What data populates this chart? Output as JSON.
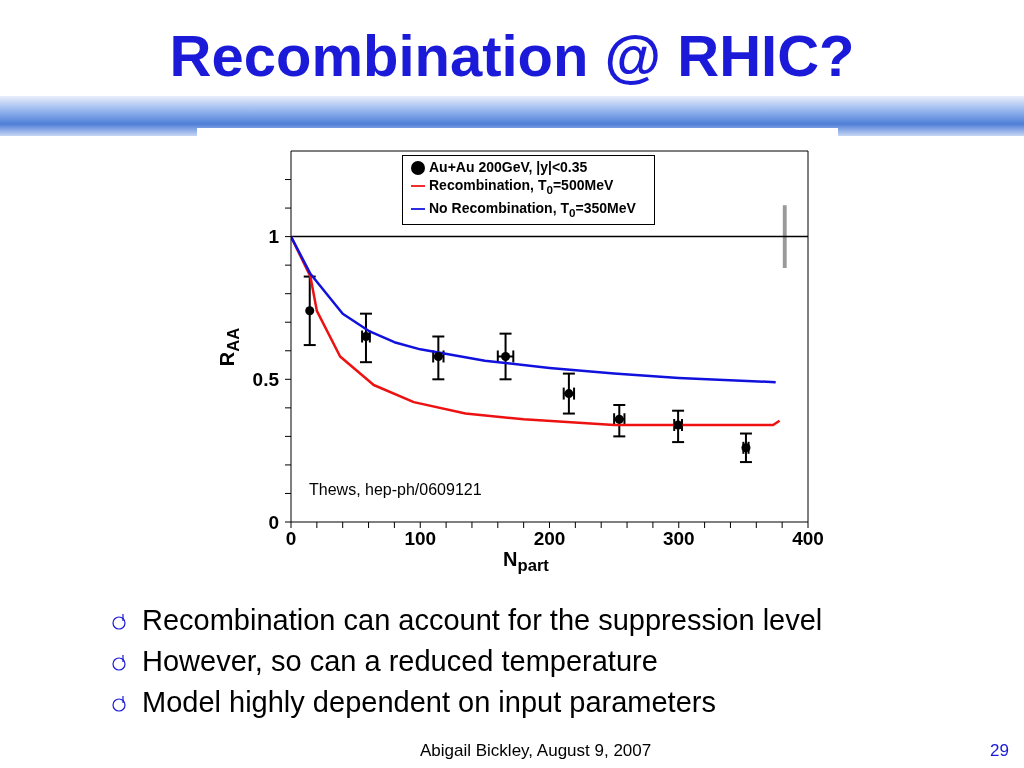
{
  "chart_data": {
    "type": "scatter",
    "title": "Recombination @ RHIC?",
    "xlabel": "N$_{part}$",
    "ylabel": "R$_{AA}$",
    "xlim": [
      0,
      400
    ],
    "xticks": [
      0,
      {
        "value": 20,
        "label": null
      },
      {
        "value": 40,
        "label": null
      },
      {
        "value": 60,
        "label": null
      },
      {
        "value": 80,
        "label": null
      },
      100,
      {
        "value": 120,
        "label": null
      },
      {
        "value": 140,
        "label": null
      },
      {
        "value": 160,
        "label": null
      },
      {
        "value": 180,
        "label": null
      },
      200,
      {
        "value": 220,
        "label": null
      },
      {
        "value": 240,
        "label": null
      },
      {
        "value": 260,
        "label": null
      },
      {
        "value": 280,
        "label": null
      },
      300,
      {
        "value": 320,
        "label": null
      },
      {
        "value": 340,
        "label": null
      },
      {
        "value": 360,
        "label": null
      },
      {
        "value": 380,
        "label": null
      },
      400
    ],
    "ylim": [
      0,
      1.3
    ],
    "yticks": [
      0,
      {
        "value": 0.1,
        "label": null
      },
      {
        "value": 0.2,
        "label": null
      },
      {
        "value": 0.3,
        "label": null
      },
      {
        "value": 0.4,
        "label": null
      },
      0.5,
      {
        "value": 0.6,
        "label": null
      },
      {
        "value": 0.7,
        "label": null
      },
      {
        "value": 0.8,
        "label": null
      },
      {
        "value": 0.9,
        "label": null
      },
      1,
      {
        "value": 1.1,
        "label": null
      },
      {
        "value": 1.2,
        "label": null
      }
    ],
    "grid": false,
    "legend": "top",
    "marker": "circle",
    "line_style": "solid",
    "series": [
      {
        "name": "Au+Au 200GeV, |y|<0.35",
        "color": "#000000",
        "x": [
          14.5,
          58,
          114,
          166,
          215,
          254,
          299.5,
          352
        ],
        "values": [
          0.74,
          0.65,
          0.58,
          0.58,
          0.45,
          0.36,
          0.34,
          0.26
        ],
        "errors": [
          [
            0.62,
            0.86
          ],
          [
            0.56,
            0.73
          ],
          [
            0.5,
            0.65
          ],
          [
            0.5,
            0.66
          ],
          [
            0.38,
            0.52
          ],
          [
            0.3,
            0.41
          ],
          [
            0.28,
            0.39
          ],
          [
            0.21,
            0.31
          ]
        ],
        "xerrors": [
          null,
          3,
          4,
          6,
          4,
          4,
          3,
          2
        ]
      },
      {
        "name": "Recombination, T$_{0}$=500MeV",
        "type": "line",
        "marker": "none",
        "color": "#ee1111",
        "x": [
          0,
          15,
          20,
          38,
          64,
          95,
          135,
          180,
          250,
          300,
          373,
          378
        ],
        "values": [
          1,
          0.86,
          0.74,
          0.58,
          0.48,
          0.42,
          0.38,
          0.36,
          0.34,
          0.34,
          0.34,
          0.355
        ]
      },
      {
        "name": "No Recombination, T$_{0}$=350MeV",
        "type": "line",
        "marker": "none",
        "color": "#1111dd",
        "x": [
          0,
          15,
          40,
          60,
          80,
          100,
          150,
          200,
          250,
          300,
          375
        ],
        "values": [
          1,
          0.87,
          0.73,
          0.67,
          0.63,
          0.605,
          0.565,
          0.54,
          0.52,
          0.505,
          0.49
        ]
      },
      {
        "type": "bar",
        "color": "#999999",
        "x": [
          382
        ],
        "base": [
          0.89
        ],
        "values": [
          0.22
        ]
      }
    ],
    "ref_lines": [
      {
        "axis": "y",
        "value": 1,
        "color": "#000000"
      }
    ],
    "annotations": [
      "Thews, hep-ph/0609121",
      "Recombination can account for the suppression level",
      "However, so can a reduced temperature",
      "Model highly dependent on input parameters",
      "Abigail Bickley, August 9, 2007",
      "29"
    ]
  }
}
